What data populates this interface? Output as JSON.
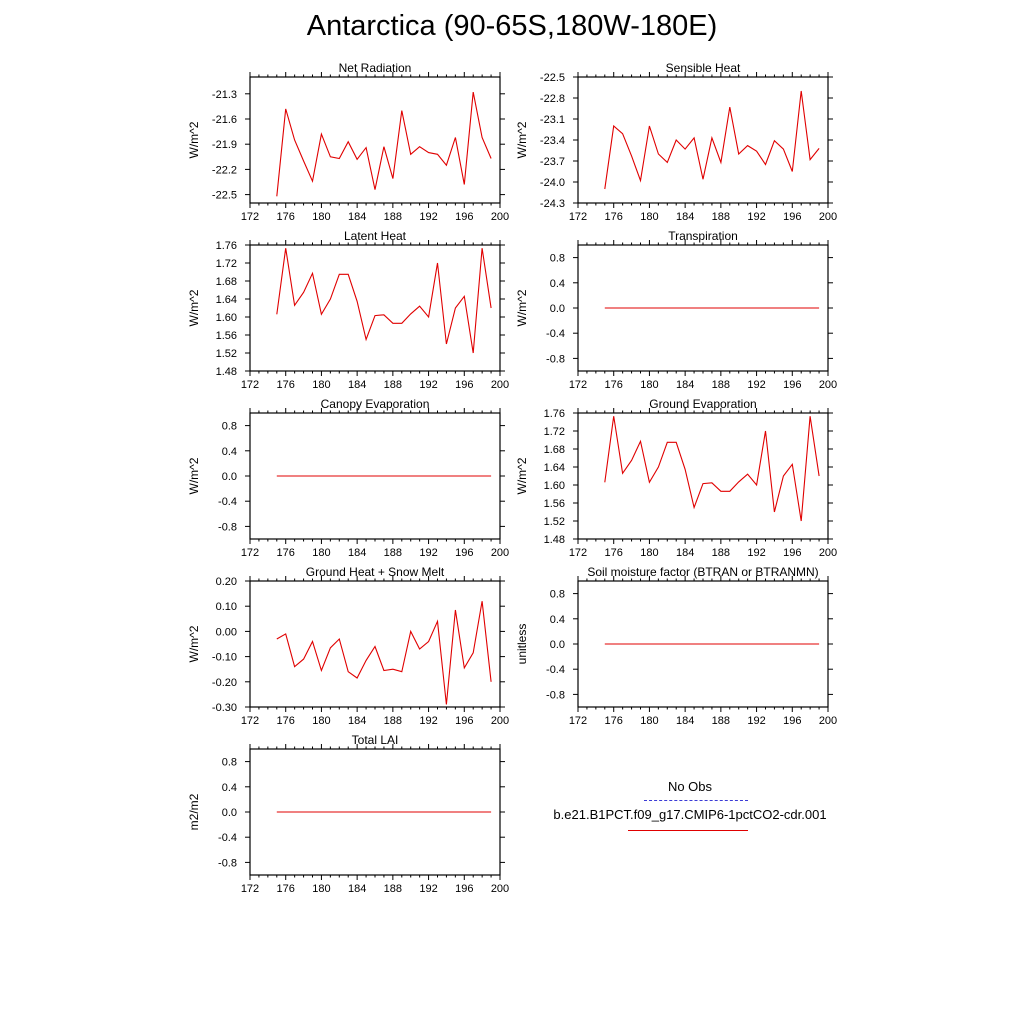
{
  "page": {
    "title": "Antarctica (90-65S,180W-180E)"
  },
  "legend": {
    "obs_label": "No Obs",
    "obs_color": "#3b3bd6",
    "case_label": "b.e21.B1PCT.f09_g17.CMIP6-1pctCO2-cdr.001",
    "case_color": "#e00000"
  },
  "chart_data": [
    {
      "type": "line",
      "title": "Net Radiation",
      "ylabel": "W/m^2",
      "xlim": [
        172,
        200
      ],
      "ylim": [
        -22.6,
        -21.1
      ],
      "xticks": [
        172,
        176,
        180,
        184,
        188,
        192,
        196,
        200
      ],
      "xtick_labels": [
        "172",
        "176",
        "180",
        "184",
        "188",
        "192",
        "196",
        "200"
      ],
      "yticks": [
        -21.3,
        -21.6,
        -21.9,
        -22.2,
        -22.5
      ],
      "ytick_labels": [
        "-21.3",
        "-21.6",
        "-21.9",
        "-22.2",
        "-22.5"
      ],
      "series": [
        {
          "color": "#e00000",
          "x": [
            175,
            176,
            177,
            178,
            179,
            180,
            181,
            182,
            183,
            184,
            185,
            186,
            187,
            188,
            189,
            190,
            191,
            192,
            193,
            194,
            195,
            196,
            197,
            198,
            199
          ],
          "y": [
            -22.52,
            -21.48,
            -21.85,
            -22.1,
            -22.34,
            -21.78,
            -22.05,
            -22.07,
            -21.87,
            -22.08,
            -21.94,
            -22.44,
            -21.93,
            -22.31,
            -21.5,
            -22.02,
            -21.93,
            -22.0,
            -22.02,
            -22.15,
            -21.82,
            -22.38,
            -21.28,
            -21.82,
            -22.07
          ]
        }
      ]
    },
    {
      "type": "line",
      "title": "Sensible Heat",
      "ylabel": "W/m^2",
      "xlim": [
        172,
        200
      ],
      "ylim": [
        -24.3,
        -22.5
      ],
      "xticks": [
        172,
        176,
        180,
        184,
        188,
        192,
        196,
        200
      ],
      "xtick_labels": [
        "172",
        "176",
        "180",
        "184",
        "188",
        "192",
        "196",
        "200"
      ],
      "yticks": [
        -22.5,
        -22.8,
        -23.1,
        -23.4,
        -23.7,
        -24.0,
        -24.3
      ],
      "ytick_labels": [
        "-22.5",
        "-22.8",
        "-23.1",
        "-23.4",
        "-23.7",
        "-24.0",
        "-24.3"
      ],
      "series": [
        {
          "color": "#e00000",
          "x": [
            175,
            176,
            177,
            178,
            179,
            180,
            181,
            182,
            183,
            184,
            185,
            186,
            187,
            188,
            189,
            190,
            191,
            192,
            193,
            194,
            195,
            196,
            197,
            198,
            199
          ],
          "y": [
            -24.1,
            -23.2,
            -23.31,
            -23.63,
            -23.98,
            -23.2,
            -23.6,
            -23.72,
            -23.4,
            -23.53,
            -23.37,
            -23.96,
            -23.37,
            -23.72,
            -22.93,
            -23.6,
            -23.48,
            -23.56,
            -23.75,
            -23.41,
            -23.53,
            -23.85,
            -22.7,
            -23.68,
            -23.52
          ]
        }
      ]
    },
    {
      "type": "line",
      "title": "Latent Heat",
      "ylabel": "W/m^2",
      "xlim": [
        172,
        200
      ],
      "ylim": [
        1.48,
        1.76
      ],
      "xticks": [
        172,
        176,
        180,
        184,
        188,
        192,
        196,
        200
      ],
      "xtick_labels": [
        "172",
        "176",
        "180",
        "184",
        "188",
        "192",
        "196",
        "200"
      ],
      "yticks": [
        1.76,
        1.72,
        1.68,
        1.64,
        1.6,
        1.56,
        1.52,
        1.48
      ],
      "ytick_labels": [
        "1.76",
        "1.72",
        "1.68",
        "1.64",
        "1.60",
        "1.56",
        "1.52",
        "1.48"
      ],
      "series": [
        {
          "color": "#e00000",
          "x": [
            175,
            176,
            177,
            178,
            179,
            180,
            181,
            182,
            183,
            184,
            185,
            186,
            187,
            188,
            189,
            190,
            191,
            192,
            193,
            194,
            195,
            196,
            197,
            198,
            199
          ],
          "y": [
            1.606,
            1.753,
            1.626,
            1.655,
            1.697,
            1.606,
            1.64,
            1.695,
            1.695,
            1.635,
            1.55,
            1.603,
            1.605,
            1.586,
            1.586,
            1.607,
            1.624,
            1.6,
            1.72,
            1.54,
            1.62,
            1.646,
            1.52,
            1.753,
            1.62
          ]
        }
      ]
    },
    {
      "type": "line",
      "title": "Transpiration",
      "ylabel": "W/m^2",
      "xlim": [
        172,
        200
      ],
      "ylim": [
        -1.0,
        1.0
      ],
      "xticks": [
        172,
        176,
        180,
        184,
        188,
        192,
        196,
        200
      ],
      "xtick_labels": [
        "172",
        "176",
        "180",
        "184",
        "188",
        "192",
        "196",
        "200"
      ],
      "yticks": [
        0.8,
        0.4,
        0.0,
        -0.4,
        -0.8
      ],
      "ytick_labels": [
        "0.8",
        "0.4",
        "0.0",
        "-0.4",
        "-0.8"
      ],
      "series": [
        {
          "color": "#e00000",
          "x": [
            175,
            199
          ],
          "y": [
            0.0,
            0.0
          ]
        }
      ]
    },
    {
      "type": "line",
      "title": "Canopy Evaporation",
      "ylabel": "W/m^2",
      "xlim": [
        172,
        200
      ],
      "ylim": [
        -1.0,
        1.0
      ],
      "xticks": [
        172,
        176,
        180,
        184,
        188,
        192,
        196,
        200
      ],
      "xtick_labels": [
        "172",
        "176",
        "180",
        "184",
        "188",
        "192",
        "196",
        "200"
      ],
      "yticks": [
        0.8,
        0.4,
        0.0,
        -0.4,
        -0.8
      ],
      "ytick_labels": [
        "0.8",
        "0.4",
        "0.0",
        "-0.4",
        "-0.8"
      ],
      "series": [
        {
          "color": "#e00000",
          "x": [
            175,
            199
          ],
          "y": [
            0.0,
            0.0
          ]
        }
      ]
    },
    {
      "type": "line",
      "title": "Ground Evaporation",
      "ylabel": "W/m^2",
      "xlim": [
        172,
        200
      ],
      "ylim": [
        1.48,
        1.76
      ],
      "xticks": [
        172,
        176,
        180,
        184,
        188,
        192,
        196,
        200
      ],
      "xtick_labels": [
        "172",
        "176",
        "180",
        "184",
        "188",
        "192",
        "196",
        "200"
      ],
      "yticks": [
        1.76,
        1.72,
        1.68,
        1.64,
        1.6,
        1.56,
        1.52,
        1.48
      ],
      "ytick_labels": [
        "1.76",
        "1.72",
        "1.68",
        "1.64",
        "1.60",
        "1.56",
        "1.52",
        "1.48"
      ],
      "series": [
        {
          "color": "#e00000",
          "x": [
            175,
            176,
            177,
            178,
            179,
            180,
            181,
            182,
            183,
            184,
            185,
            186,
            187,
            188,
            189,
            190,
            191,
            192,
            193,
            194,
            195,
            196,
            197,
            198,
            199
          ],
          "y": [
            1.606,
            1.753,
            1.626,
            1.655,
            1.697,
            1.606,
            1.64,
            1.695,
            1.695,
            1.635,
            1.55,
            1.603,
            1.605,
            1.586,
            1.586,
            1.607,
            1.624,
            1.6,
            1.72,
            1.54,
            1.62,
            1.646,
            1.52,
            1.753,
            1.62
          ]
        }
      ]
    },
    {
      "type": "line",
      "title": "Ground Heat + Snow Melt",
      "ylabel": "W/m^2",
      "xlim": [
        172,
        200
      ],
      "ylim": [
        -0.3,
        0.2
      ],
      "xticks": [
        172,
        176,
        180,
        184,
        188,
        192,
        196,
        200
      ],
      "xtick_labels": [
        "172",
        "176",
        "180",
        "184",
        "188",
        "192",
        "196",
        "200"
      ],
      "yticks": [
        0.2,
        0.1,
        0.0,
        -0.1,
        -0.2,
        -0.3
      ],
      "ytick_labels": [
        "0.20",
        "0.10",
        "0.00",
        "-0.10",
        "-0.20",
        "-0.30"
      ],
      "series": [
        {
          "color": "#e00000",
          "x": [
            175,
            176,
            177,
            178,
            179,
            180,
            181,
            182,
            183,
            184,
            185,
            186,
            187,
            188,
            189,
            190,
            191,
            192,
            193,
            194,
            195,
            196,
            197,
            198,
            199
          ],
          "y": [
            -0.03,
            -0.01,
            -0.14,
            -0.11,
            -0.04,
            -0.155,
            -0.065,
            -0.03,
            -0.16,
            -0.185,
            -0.115,
            -0.06,
            -0.155,
            -0.15,
            -0.16,
            0.0,
            -0.07,
            -0.04,
            0.04,
            -0.29,
            0.085,
            -0.145,
            -0.085,
            0.12,
            -0.2
          ]
        }
      ]
    },
    {
      "type": "line",
      "title": "Soil moisture factor (BTRAN or BTRANMN)",
      "ylabel": "unitless",
      "xlim": [
        172,
        200
      ],
      "ylim": [
        -1.0,
        1.0
      ],
      "xticks": [
        172,
        176,
        180,
        184,
        188,
        192,
        196,
        200
      ],
      "xtick_labels": [
        "172",
        "176",
        "180",
        "184",
        "188",
        "192",
        "196",
        "200"
      ],
      "yticks": [
        0.8,
        0.4,
        0.0,
        -0.4,
        -0.8
      ],
      "ytick_labels": [
        "0.8",
        "0.4",
        "0.0",
        "-0.4",
        "-0.8"
      ],
      "series": [
        {
          "color": "#e00000",
          "x": [
            175,
            199
          ],
          "y": [
            0.0,
            0.0
          ]
        }
      ]
    },
    {
      "type": "line",
      "title": "Total LAI",
      "ylabel": "m2/m2",
      "xlim": [
        172,
        200
      ],
      "ylim": [
        -1.0,
        1.0
      ],
      "xticks": [
        172,
        176,
        180,
        184,
        188,
        192,
        196,
        200
      ],
      "xtick_labels": [
        "172",
        "176",
        "180",
        "184",
        "188",
        "192",
        "196",
        "200"
      ],
      "yticks": [
        0.8,
        0.4,
        0.0,
        -0.4,
        -0.8
      ],
      "ytick_labels": [
        "0.8",
        "0.4",
        "0.0",
        "-0.4",
        "-0.8"
      ],
      "series": [
        {
          "color": "#e00000",
          "x": [
            175,
            199
          ],
          "y": [
            0.0,
            0.0
          ]
        }
      ]
    }
  ]
}
